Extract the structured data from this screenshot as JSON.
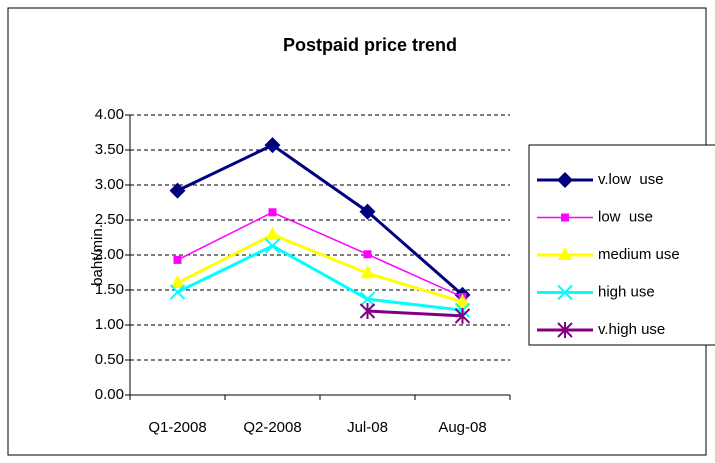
{
  "chart_data": {
    "type": "line",
    "title": "Postpaid price trend",
    "y_label": "baht/min.",
    "categories": [
      "Q1-2008",
      "Q2-2008",
      "Jul-08",
      "Aug-08"
    ],
    "series": [
      {
        "name": "v.low  use",
        "color": "#000080",
        "marker": "diamond",
        "values": [
          2.92,
          3.57,
          2.62,
          1.43
        ]
      },
      {
        "name": "low  use",
        "color": "#ff00ff",
        "marker": "square",
        "values": [
          1.93,
          2.61,
          2.01,
          1.4
        ]
      },
      {
        "name": "medium use",
        "color": "#ffff00",
        "marker": "triangle",
        "values": [
          1.6,
          2.29,
          1.74,
          1.33
        ]
      },
      {
        "name": "high use",
        "color": "#00ffff",
        "marker": "x",
        "values": [
          1.47,
          2.13,
          1.37,
          1.21
        ]
      },
      {
        "name": "v.high use",
        "color": "#800080",
        "marker": "star",
        "values": [
          null,
          null,
          1.2,
          1.13
        ]
      }
    ],
    "ylim": [
      0,
      4
    ],
    "yticks": [
      {
        "value": 0,
        "label": "0.00"
      },
      {
        "value": 0.5,
        "label": "0.50"
      },
      {
        "value": 1,
        "label": "1.00"
      },
      {
        "value": 1.5,
        "label": "1.50"
      },
      {
        "value": 2,
        "label": "2.00"
      },
      {
        "value": 2.5,
        "label": "2.50"
      },
      {
        "value": 3,
        "label": "3.00"
      },
      {
        "value": 3.5,
        "label": "3.50"
      },
      {
        "value": 4,
        "label": "4.00"
      }
    ],
    "grid": true,
    "legend": "right"
  }
}
